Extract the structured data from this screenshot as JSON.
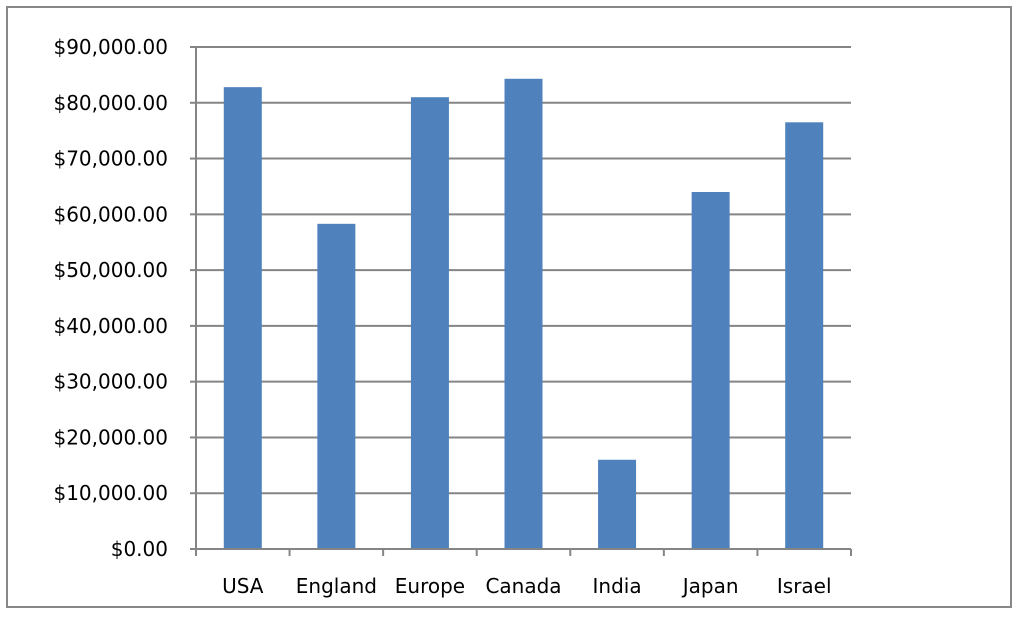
{
  "chart_data": {
    "type": "bar",
    "categories": [
      "USA",
      "England",
      "Europe",
      "Canada",
      "India",
      "Japan",
      "Israel"
    ],
    "values": [
      82800,
      58300,
      81000,
      84300,
      16000,
      64000,
      76500
    ],
    "y_tick_labels": [
      "$0.00",
      "$10,000.00",
      "$20,000.00",
      "$30,000.00",
      "$40,000.00",
      "$50,000.00",
      "$60,000.00",
      "$70,000.00",
      "$80,000.00",
      "$90,000.00"
    ],
    "ylim": [
      0,
      90000
    ],
    "y_tick_step": 10000,
    "grid": true,
    "legend": "none",
    "title": "",
    "xlabel": "",
    "ylabel": "",
    "colors": {
      "bar": "#4f81bd",
      "grid": "#858585",
      "axis": "#858585",
      "frame": "#888888",
      "text": "#000000"
    }
  }
}
